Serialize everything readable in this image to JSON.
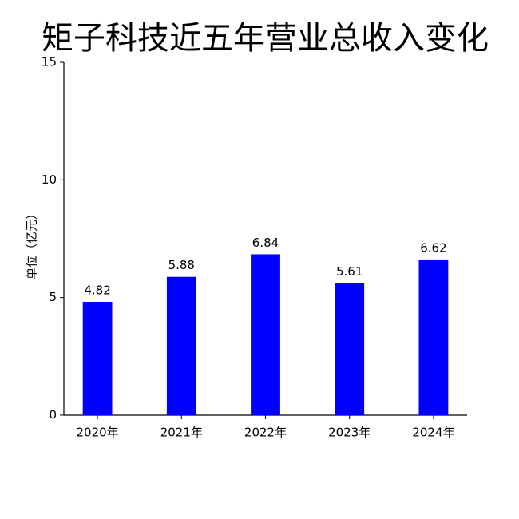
{
  "chart_data": {
    "type": "bar",
    "title": "矩子科技近五年营业总收入变化",
    "y_label": "单位（亿元）",
    "categories": [
      "2020年",
      "2021年",
      "2022年",
      "2023年",
      "2024年"
    ],
    "values": [
      4.82,
      5.88,
      6.84,
      5.61,
      6.62
    ],
    "color": "#0000ff",
    "ylim": [
      0,
      15
    ],
    "yticks": [
      0,
      5,
      10,
      15
    ],
    "grid": false
  }
}
